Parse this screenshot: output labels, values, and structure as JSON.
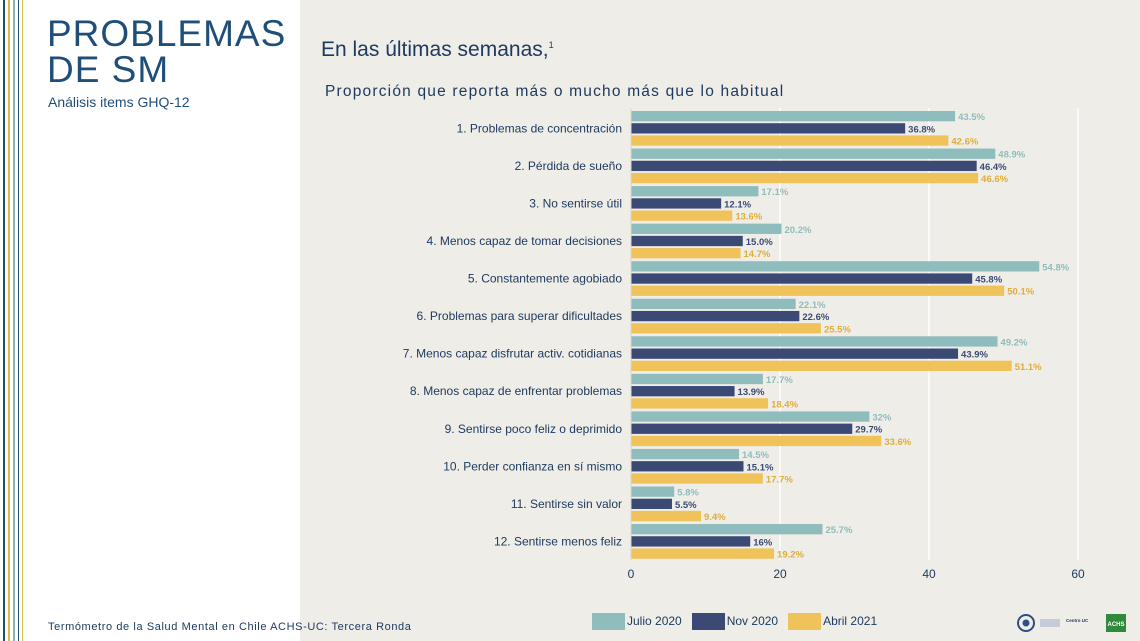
{
  "slide": {
    "title": "PROBLEMAS\nDE SM",
    "subtitle": "Análisis items GHQ-12",
    "heading": "En las últimas semanas,",
    "heading_footnote": "1",
    "footer": "Termómetro de la Salud Mental en Chile ACHS-UC: Tercera Ronda",
    "logos": [
      "Centro UC",
      "ACHS"
    ]
  },
  "colors": {
    "julio": "#8fbcbc",
    "nov": "#3a4a75",
    "abril": "#f0c25a",
    "stripe_navy": "#1f4e79",
    "stripe_gold": "#e2b84c",
    "stripe_teal": "#86b4b6"
  },
  "chart_data": {
    "type": "bar",
    "orientation": "horizontal",
    "title": "Proporción que reporta más o mucho más que lo habitual",
    "categories": [
      "1. Problemas de concentración",
      "2. Pérdida de sueño",
      "3. No sentirse útil",
      "4. Menos capaz de tomar decisiones",
      "5. Constantemente agobiado",
      "6. Problemas para superar dificultades",
      "7. Menos capaz disfrutar activ. cotidianas",
      "8. Menos capaz de enfrentar problemas",
      "9. Sentirse poco feliz o deprimido",
      "10. Perder confianza en sí mismo",
      "11. Sentirse sin valor",
      "12. Sentirse menos feliz"
    ],
    "series": [
      {
        "name": "Julio 2020",
        "values": [
          43.5,
          48.9,
          17.1,
          20.2,
          54.8,
          22.1,
          49.2,
          17.7,
          32,
          14.5,
          5.8,
          25.7
        ],
        "labels": [
          "43.5%",
          "48.9%",
          "17.1%",
          "20.2%",
          "54.8%",
          "22.1%",
          "49.2%",
          "17.7%",
          "32%",
          "14.5%",
          "5.8%",
          "25.7%"
        ]
      },
      {
        "name": "Nov 2020",
        "values": [
          36.8,
          46.4,
          12.1,
          15.0,
          45.8,
          22.6,
          43.9,
          13.9,
          29.7,
          15.1,
          5.5,
          16
        ],
        "labels": [
          "36.8%",
          "46.4%",
          "12.1%",
          "15.0%",
          "45.8%",
          "22.6%",
          "43.9%",
          "13.9%",
          "29.7%",
          "15.1%",
          "5.5%",
          "16%"
        ]
      },
      {
        "name": "Abril 2021",
        "values": [
          42.6,
          46.6,
          13.6,
          14.7,
          50.1,
          25.5,
          51.1,
          18.4,
          33.6,
          17.7,
          9.4,
          19.2
        ],
        "labels": [
          "42.6%",
          "46.6%",
          "13.6%",
          "14.7%",
          "50.1%",
          "25.5%",
          "51.1%",
          "18.4%",
          "33.6%",
          "17.7%",
          "9.4%",
          "19.2%"
        ]
      }
    ],
    "xlim": [
      0,
      60
    ],
    "xticks": [
      0,
      20,
      40,
      60
    ],
    "xtick_labels": [
      "0",
      "20",
      "40",
      "60"
    ],
    "grid": true,
    "legend_position": "bottom"
  }
}
